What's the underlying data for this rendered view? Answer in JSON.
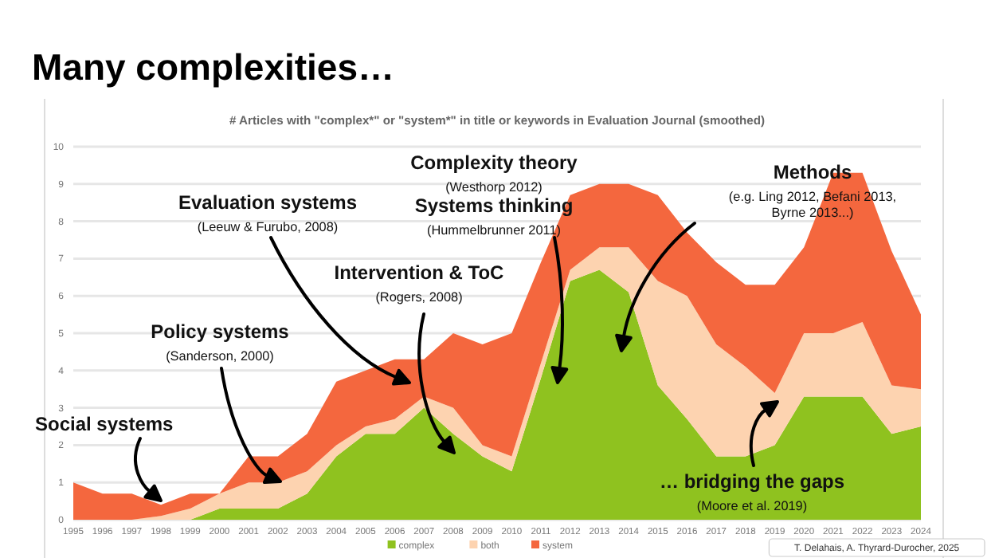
{
  "chart_data": {
    "type": "area",
    "stacked": true,
    "title": "Many complexities…",
    "subtitle": "# Articles with \"complex*\" or \"system*\" in title or keywords in Evaluation Journal (smoothed)",
    "x": [
      1995,
      1996,
      1997,
      1998,
      1999,
      2000,
      2001,
      2002,
      2003,
      2004,
      2005,
      2006,
      2007,
      2008,
      2009,
      2010,
      2011,
      2012,
      2013,
      2014,
      2015,
      2016,
      2017,
      2018,
      2019,
      2020,
      2021,
      2022,
      2023,
      2024
    ],
    "series": [
      {
        "name": "complex",
        "color": "#8fc21f",
        "values": [
          0,
          0,
          0,
          0,
          0,
          0.3,
          0.3,
          0.3,
          0.7,
          1.7,
          2.3,
          2.3,
          3.0,
          2.3,
          1.7,
          1.3,
          3.8,
          6.4,
          6.7,
          6.1,
          3.6,
          2.7,
          1.7,
          1.7,
          2.0,
          3.3,
          3.3,
          3.3,
          2.3,
          2.5
        ]
      },
      {
        "name": "both",
        "color": "#fdd3b0",
        "values": [
          0,
          0,
          0,
          0.1,
          0.3,
          0.4,
          0.7,
          0.7,
          0.6,
          0.3,
          0.2,
          0.4,
          0.3,
          0.7,
          0.3,
          0.4,
          0.4,
          0.3,
          0.6,
          1.2,
          2.8,
          3.3,
          3.0,
          2.4,
          1.4,
          1.7,
          1.7,
          2.0,
          1.3,
          1.0
        ]
      },
      {
        "name": "system",
        "color": "#f4673e",
        "values": [
          1.0,
          0.7,
          0.7,
          0.3,
          0.4,
          0,
          0.7,
          0.7,
          1.0,
          1.7,
          1.5,
          1.6,
          1.0,
          2.0,
          2.7,
          3.3,
          2.7,
          2.0,
          1.7,
          1.7,
          2.3,
          1.7,
          2.2,
          2.2,
          2.9,
          2.3,
          4.3,
          4.0,
          3.6,
          2.0
        ]
      }
    ],
    "xlim": [
      1995,
      2024
    ],
    "xticks": [
      1995,
      1996,
      1997,
      1998,
      1999,
      2000,
      2001,
      2002,
      2003,
      2004,
      2005,
      2006,
      2007,
      2008,
      2009,
      2010,
      2011,
      2012,
      2013,
      2014,
      2015,
      2016,
      2017,
      2018,
      2019,
      2020,
      2021,
      2022,
      2023,
      2024
    ],
    "ylim": [
      0,
      10
    ],
    "yticks": [
      0,
      1,
      2,
      3,
      4,
      5,
      6,
      7,
      8,
      9,
      10
    ],
    "grid": "y",
    "legend": "bottom",
    "annotations": [
      "Social systems",
      "Policy systems\n(Sanderson, 2000)",
      "Evaluation systems\n(Leeuw & Furubo, 2008)",
      "Intervention & ToC\n(Rogers, 2008)",
      "Complexity theory\n(Westhorp 2012)",
      "Systems thinking\n(Hummelbrunner 2011)",
      "Methods\n(e.g. Ling 2012, Befani 2013,\nByrne 2013...)",
      "… bridging the gaps\n(Moore et al. 2019)",
      "T. Delahais, A. Thyrard-Durocher, 2025"
    ]
  }
}
